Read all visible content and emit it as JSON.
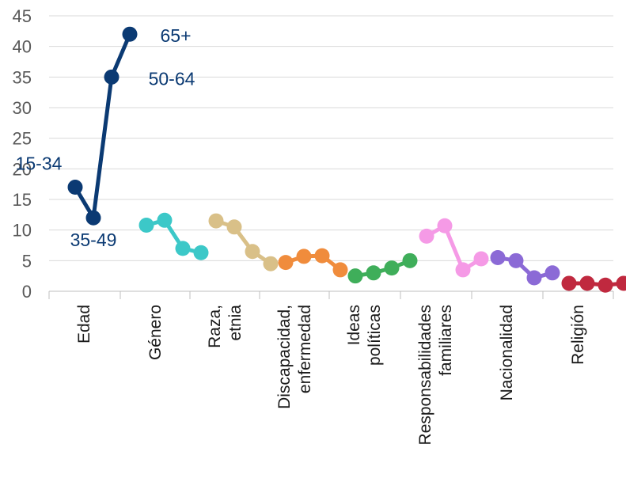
{
  "chart_data": {
    "type": "line",
    "title": "",
    "xlabel": "",
    "ylabel": "",
    "ylim": [
      0,
      45
    ],
    "yticks": [
      0,
      5,
      10,
      15,
      20,
      25,
      30,
      35,
      40,
      45
    ],
    "grid": true,
    "legend": "none",
    "series": [
      {
        "category": "Edad",
        "color": "#0b3a73",
        "values": [
          17,
          12,
          35,
          42
        ],
        "point_labels": [
          "15-34",
          "35-49",
          "50-64",
          "65+"
        ]
      },
      {
        "category": "Género",
        "color": "#3cc8c8",
        "values": [
          10.8,
          11.6,
          7,
          6.3
        ]
      },
      {
        "category": "Raza,\netnia",
        "color": "#d9c088",
        "values": [
          11.5,
          10.5,
          6.5,
          4.5
        ]
      },
      {
        "category": "Discapacidad,\nenfermedad",
        "color": "#f08c3c",
        "values": [
          4.7,
          5.7,
          5.8,
          3.5
        ]
      },
      {
        "category": "Ideas\npolíticas",
        "color": "#3fae5a",
        "values": [
          2.5,
          3,
          3.8,
          5
        ]
      },
      {
        "category": "Responsabilidades\nfamiliares",
        "color": "#f59ae6",
        "values": [
          9,
          10.7,
          3.5,
          5.3
        ]
      },
      {
        "category": "Nacionalidad",
        "color": "#8b6ad6",
        "values": [
          5.5,
          5,
          2.2,
          3
        ]
      },
      {
        "category": "Religión",
        "color": "#c0293f",
        "values": [
          1.3,
          1.3,
          1,
          1.3
        ]
      }
    ]
  }
}
